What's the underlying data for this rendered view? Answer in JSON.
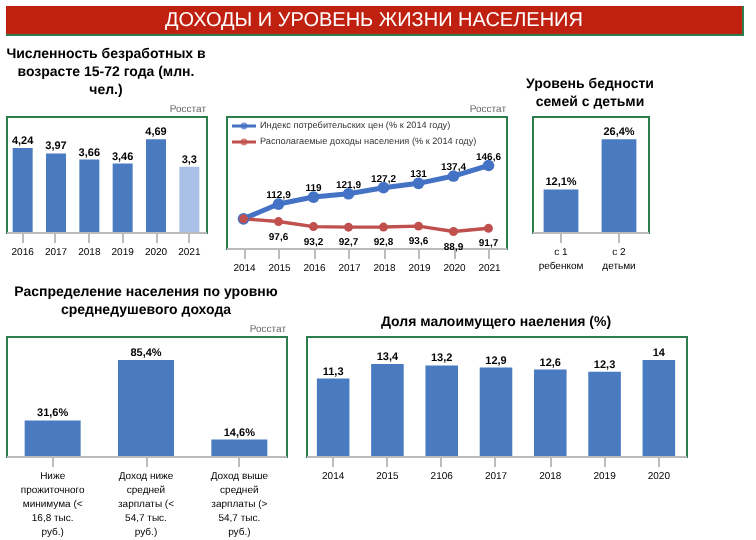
{
  "chart_data": [
    {
      "type": "other",
      "title": "ДОХОДЫ И УРОВЕНЬ ЖИЗНИ НАСЕЛЕНИЯ"
    },
    {
      "type": "bar",
      "title": "Численность безработных в возрасте 15-72 года (млн. чел.)",
      "annotations": [
        "Росстат"
      ],
      "categories": [
        "2016",
        "2017",
        "2018",
        "2019",
        "2020",
        "2021"
      ],
      "values": [
        4.24,
        3.97,
        3.66,
        3.46,
        4.69,
        3.3
      ],
      "colors": [
        "#4a7bc0",
        "#4a7bc0",
        "#4a7bc0",
        "#4a7bc0",
        "#4a7bc0",
        "#a9c1e6"
      ],
      "value_labels": [
        "4,24",
        "3,97",
        "3,66",
        "3,46",
        "4,69",
        "3,3"
      ]
    },
    {
      "type": "line",
      "annotations": [
        "Росстат"
      ],
      "categories": [
        "2014",
        "2015",
        "2016",
        "2017",
        "2018",
        "2019",
        "2020",
        "2021"
      ],
      "legend": "top",
      "marker": "circle",
      "series": [
        {
          "name": "Индекс потребительских цен (% к 2014 году)",
          "color": "#4472c4",
          "values": [
            100,
            112.9,
            119,
            121.9,
            127.2,
            131,
            137.4,
            146.6
          ],
          "value_labels": [
            null,
            "112,9",
            "119",
            "121,9",
            "127,2",
            "131",
            "137,4",
            "146,6"
          ]
        },
        {
          "name": "Располагаемые доходы населения (% к 2014 году)",
          "color": "#c0504d",
          "values": [
            100,
            97.6,
            93.2,
            92.7,
            92.8,
            93.6,
            88.9,
            91.7
          ],
          "value_labels": [
            null,
            "97,6",
            "93,2",
            "92,7",
            "92,8",
            "93,6",
            "88,9",
            "91,7"
          ]
        }
      ]
    },
    {
      "type": "bar",
      "title": "Уровень бедности семей с детьми",
      "categories": [
        "с 1 ребенком",
        "с 2 детьми"
      ],
      "values": [
        12.1,
        26.4
      ],
      "color": "#4a7bc0",
      "value_labels": [
        "12,1%",
        "26,4%"
      ]
    },
    {
      "type": "bar",
      "title": "Распределение населения по уровню среднедушевого дохода",
      "annotations": [
        "Росстат"
      ],
      "categories": [
        "Ниже прожиточного минимума (< 16,8 тыс. руб.)",
        "Доход ниже средней зарплаты (< 54,7 тыс. руб.)",
        "Доход выше средней зарплаты (> 54,7 тыс. руб.)"
      ],
      "values": [
        31.6,
        85.4,
        14.6
      ],
      "color": "#4a7bc0",
      "value_labels": [
        "31,6%",
        "85,4%",
        "14,6%"
      ]
    },
    {
      "type": "bar",
      "title": "Доля малоимущего наеления (%)",
      "categories": [
        "2014",
        "2015",
        "2106",
        "2017",
        "2018",
        "2019",
        "2020"
      ],
      "values": [
        11.3,
        13.4,
        13.2,
        12.9,
        12.6,
        12.3,
        14
      ],
      "color": "#4a7bc0",
      "value_labels": [
        "11,3",
        "13,4",
        "13,2",
        "12,9",
        "12,6",
        "12,3",
        "14"
      ]
    }
  ]
}
